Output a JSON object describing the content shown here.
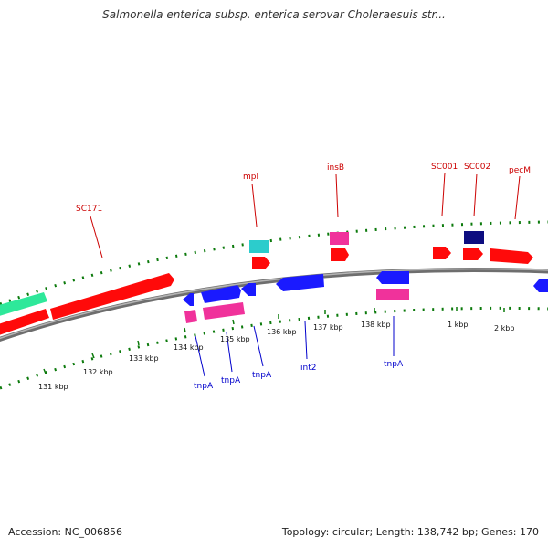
{
  "title": "Salmonella enterica subsp. enterica serovar Choleraesuis str...",
  "footer": {
    "accession": "Accession: NC_006856",
    "summary": "Topology: circular; Length: 138,742 bp; Genes: 170"
  },
  "colors": {
    "backbone": "#8c8c8c",
    "ticks": "#0c7a0c",
    "label_red": "#cc0000",
    "label_blue": "#0000cc",
    "red_gene": "#ff0a0a",
    "blue_gene": "#1a1aff",
    "pink_gene": "#f0329b",
    "cyan_gene": "#2ccccc",
    "green_gene": "#2ee89a",
    "navy_gene": "#0d0d80"
  },
  "tick_labels": [
    "131 kbp",
    "132 kbp",
    "133 kbp",
    "134 kbp",
    "135 kbp",
    "136 kbp",
    "137 kbp",
    "138 kbp",
    "1 kbp",
    "2 kbp"
  ],
  "gene_labels": {
    "outer": [
      "SC171",
      "mpi",
      "insB",
      "SC001",
      "SC002",
      "pecM"
    ],
    "inner": [
      "tnpA",
      "tnpA",
      "tnpA",
      "int2",
      "tnpA"
    ]
  }
}
